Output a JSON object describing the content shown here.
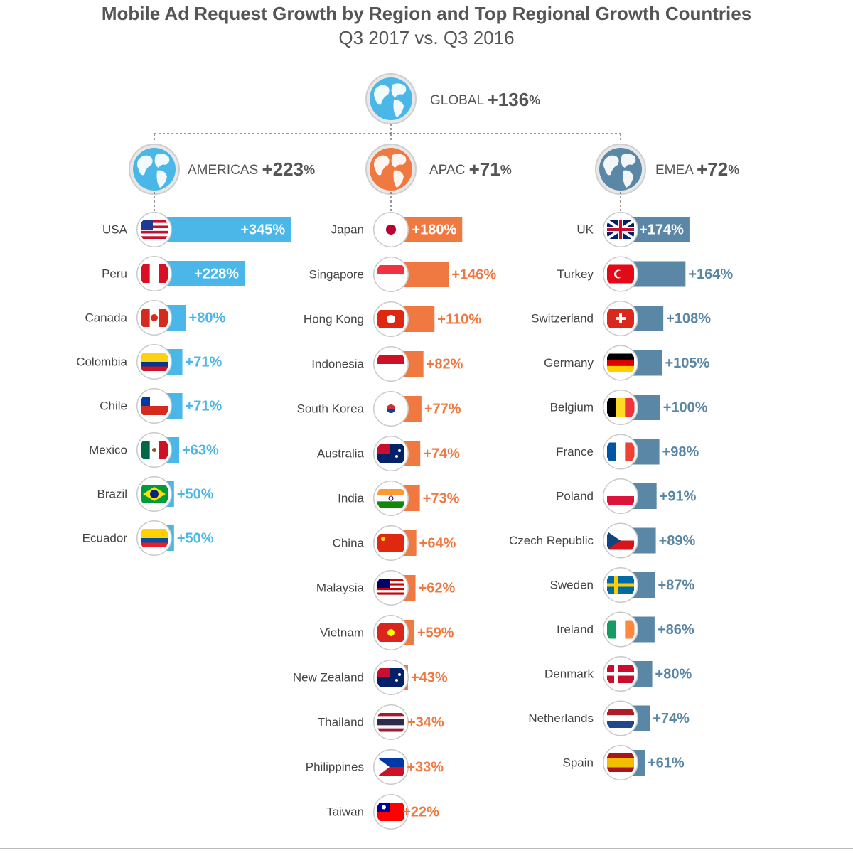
{
  "chart_data": {
    "type": "bar",
    "title": "Mobile Ad Request Growth by Region and Top Regional Growth Countries",
    "subtitle": "Q3 2017 vs. Q3 2016",
    "global": {
      "name": "GLOBAL",
      "value": 136,
      "label": "+136",
      "unit": "%"
    },
    "regions": [
      {
        "name": "AMERICAS",
        "value": 223,
        "label": "+223",
        "unit": "%",
        "color": "#4bb7e8",
        "countries": [
          {
            "name": "USA",
            "value": 345,
            "label": "+345%"
          },
          {
            "name": "Peru",
            "value": 228,
            "label": "+228%"
          },
          {
            "name": "Canada",
            "value": 80,
            "label": "+80%"
          },
          {
            "name": "Colombia",
            "value": 71,
            "label": "+71%"
          },
          {
            "name": "Chile",
            "value": 71,
            "label": "+71%"
          },
          {
            "name": "Mexico",
            "value": 63,
            "label": "+63%"
          },
          {
            "name": "Brazil",
            "value": 50,
            "label": "+50%"
          },
          {
            "name": "Ecuador",
            "value": 50,
            "label": "+50%"
          }
        ]
      },
      {
        "name": "APAC",
        "value": 71,
        "label": "+71",
        "unit": "%",
        "color": "#f07941",
        "countries": [
          {
            "name": "Japan",
            "value": 180,
            "label": "+180%"
          },
          {
            "name": "Singapore",
            "value": 146,
            "label": "+146%"
          },
          {
            "name": "Hong Kong",
            "value": 110,
            "label": "+110%"
          },
          {
            "name": "Indonesia",
            "value": 82,
            "label": "+82%"
          },
          {
            "name": "South Korea",
            "value": 77,
            "label": "+77%"
          },
          {
            "name": "Australia",
            "value": 74,
            "label": "+74%"
          },
          {
            "name": "India",
            "value": 73,
            "label": "+73%"
          },
          {
            "name": "China",
            "value": 64,
            "label": "+64%"
          },
          {
            "name": "Malaysia",
            "value": 62,
            "label": "+62%"
          },
          {
            "name": "Vietnam",
            "value": 59,
            "label": "+59%"
          },
          {
            "name": "New Zealand",
            "value": 43,
            "label": "+43%"
          },
          {
            "name": "Thailand",
            "value": 34,
            "label": "+34%"
          },
          {
            "name": "Philippines",
            "value": 33,
            "label": "+33%"
          },
          {
            "name": "Taiwan",
            "value": 22,
            "label": "+22%"
          }
        ]
      },
      {
        "name": "EMEA",
        "value": 72,
        "label": "+72",
        "unit": "%",
        "color": "#5b87a6",
        "countries": [
          {
            "name": "UK",
            "value": 174,
            "label": "+174%"
          },
          {
            "name": "Turkey",
            "value": 164,
            "label": "+164%"
          },
          {
            "name": "Switzerland",
            "value": 108,
            "label": "+108%"
          },
          {
            "name": "Germany",
            "value": 105,
            "label": "+105%"
          },
          {
            "name": "Belgium",
            "value": 100,
            "label": "+100%"
          },
          {
            "name": "France",
            "value": 98,
            "label": "+98%"
          },
          {
            "name": "Poland",
            "value": 91,
            "label": "+91%"
          },
          {
            "name": "Czech Republic",
            "value": 89,
            "label": "+89%"
          },
          {
            "name": "Sweden",
            "value": 87,
            "label": "+87%"
          },
          {
            "name": "Ireland",
            "value": 86,
            "label": "+86%"
          },
          {
            "name": "Denmark",
            "value": 80,
            "label": "+80%"
          },
          {
            "name": "Netherlands",
            "value": 74,
            "label": "+74%"
          },
          {
            "name": "Spain",
            "value": 61,
            "label": "+61%"
          }
        ]
      }
    ]
  }
}
